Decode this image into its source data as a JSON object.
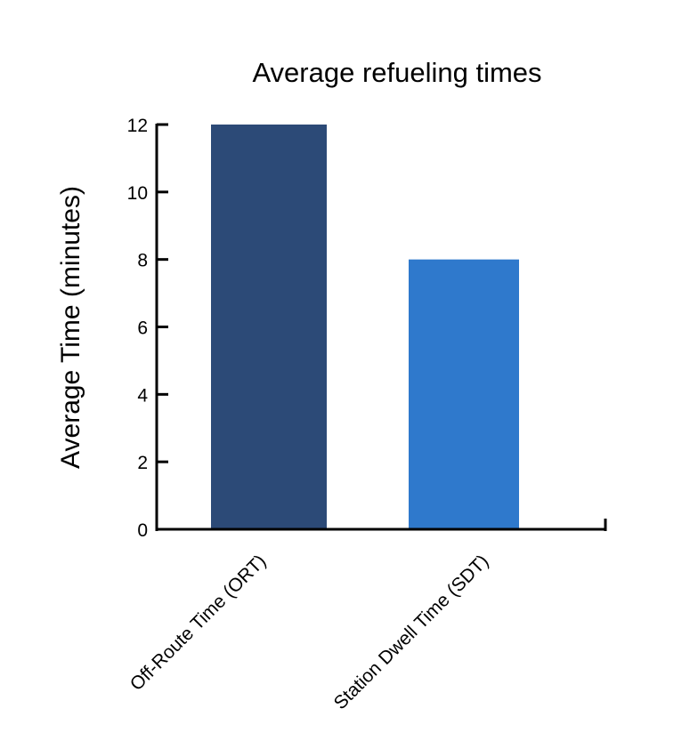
{
  "chart_data": {
    "type": "bar",
    "title": "Average refueling times",
    "xlabel": "",
    "ylabel": "Average Time (minutes)",
    "categories": [
      "Off-Route Time (ORT)",
      "Station Dwell Time (SDT)"
    ],
    "values": [
      12,
      8
    ],
    "colors": [
      "#2c4a77",
      "#2f79cc"
    ],
    "ylim": [
      0,
      12
    ],
    "yticks": [
      "0",
      "2",
      "4",
      "6",
      "8",
      "10",
      "12"
    ],
    "grid": false,
    "legend": null
  }
}
